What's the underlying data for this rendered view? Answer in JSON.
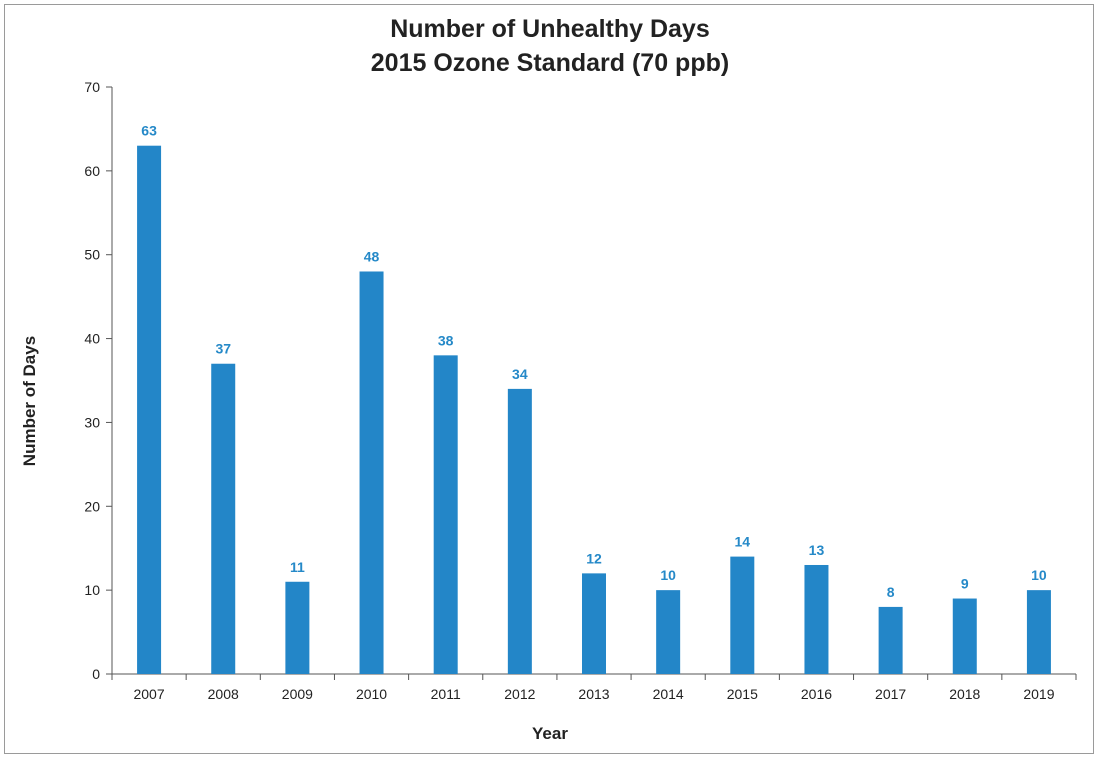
{
  "chart_data": {
    "type": "bar",
    "title": "Number of Unhealthy Days",
    "subtitle": "2015 Ozone Standard (70 ppb)",
    "xlabel": "Year",
    "ylabel": "Number of Days",
    "categories": [
      "2007",
      "2008",
      "2009",
      "2010",
      "2011",
      "2012",
      "2013",
      "2014",
      "2015",
      "2016",
      "2017",
      "2018",
      "2019"
    ],
    "values": [
      63,
      37,
      11,
      48,
      38,
      34,
      12,
      10,
      14,
      13,
      8,
      9,
      10
    ],
    "ylim": [
      0,
      70
    ],
    "yticks": [
      0,
      10,
      20,
      30,
      40,
      50,
      60,
      70
    ],
    "grid": false,
    "legend": "none",
    "bar_color": "#2386c8",
    "label_color": "#2589c8"
  }
}
